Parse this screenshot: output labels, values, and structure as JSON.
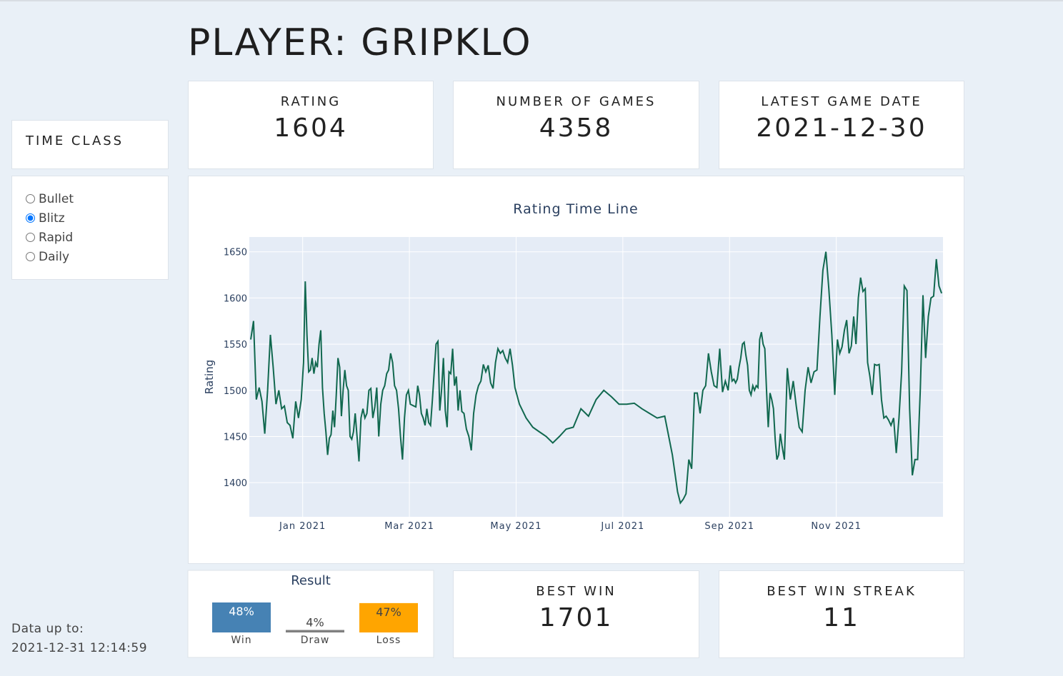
{
  "header": {
    "title": "PLAYER: GRIPKLO"
  },
  "sidebar": {
    "title": "TIME CLASS",
    "options": [
      "Bullet",
      "Blitz",
      "Rapid",
      "Daily"
    ],
    "selected": "Blitz",
    "footer_label": "Data up to:",
    "footer_value": "2021-12-31 12:14:59"
  },
  "cards": [
    {
      "label": "RATING",
      "value": "1604"
    },
    {
      "label": "NUMBER OF GAMES",
      "value": "4358"
    },
    {
      "label": "LATEST GAME DATE",
      "value": "2021-12-30"
    },
    {
      "label": "BEST WIN",
      "value": "1701"
    },
    {
      "label": "BEST WIN STREAK",
      "value": "11"
    }
  ],
  "chart_data": [
    {
      "type": "line",
      "title": "Rating Time Line",
      "y_label": "Rating",
      "color": "#11684f",
      "grid": true,
      "xlim": [
        "2020-12",
        "2022-01"
      ],
      "xticks": [
        {
          "value": "2021-01",
          "label": "Jan 2021"
        },
        {
          "value": "2021-03",
          "label": "Mar 2021"
        },
        {
          "value": "2021-05",
          "label": "May 2021"
        },
        {
          "value": "2021-07",
          "label": "Jul 2021"
        },
        {
          "value": "2021-09",
          "label": "Sep 2021"
        },
        {
          "value": "2021-11",
          "label": "Nov 2021"
        }
      ],
      "ylim": [
        1363,
        1666
      ],
      "yticks": [
        1400,
        1450,
        1500,
        1550,
        1600,
        1650
      ],
      "x": [
        "2020-12",
        "2020-12",
        "2020-12",
        "2020-12",
        "2020-12",
        "2020-12",
        "2020-12",
        "2020-12",
        "2020-12",
        "2020-12",
        "2020-12",
        "2020-12",
        "2020-12",
        "2020-12",
        "2020-12",
        "2020-12",
        "2020-12",
        "2020-12",
        "2020-12",
        "2021-01",
        "2021-01",
        "2021-01",
        "2021-01",
        "2021-01",
        "2021-01",
        "2021-01",
        "2021-01",
        "2021-01",
        "2021-01",
        "2021-01",
        "2021-01",
        "2021-01",
        "2021-01",
        "2021-01",
        "2021-01",
        "2021-01",
        "2021-01",
        "2021-01",
        "2021-01",
        "2021-01",
        "2021-01",
        "2021-01",
        "2021-01",
        "2021-01",
        "2021-01",
        "2021-01",
        "2021-01",
        "2021-01",
        "2021-01",
        "2021-01",
        "2021-02",
        "2021-02",
        "2021-02",
        "2021-02",
        "2021-02",
        "2021-02",
        "2021-02",
        "2021-02",
        "2021-02",
        "2021-02",
        "2021-02",
        "2021-02",
        "2021-02",
        "2021-02",
        "2021-02",
        "2021-02",
        "2021-02",
        "2021-02",
        "2021-02",
        "2021-02",
        "2021-02",
        "2021-02",
        "2021-02",
        "2021-02",
        "2021-02",
        "2021-02",
        "2021-02",
        "2021-03",
        "2021-03",
        "2021-03",
        "2021-03",
        "2021-03",
        "2021-03",
        "2021-03",
        "2021-03",
        "2021-03",
        "2021-03",
        "2021-03",
        "2021-03",
        "2021-03",
        "2021-03",
        "2021-03",
        "2021-03",
        "2021-03",
        "2021-03",
        "2021-03",
        "2021-03",
        "2021-03",
        "2021-03",
        "2021-03",
        "2021-03",
        "2021-03",
        "2021-03",
        "2021-03",
        "2021-03",
        "2021-03",
        "2021-04",
        "2021-04",
        "2021-04",
        "2021-04",
        "2021-04",
        "2021-04",
        "2021-04",
        "2021-04",
        "2021-04",
        "2021-04",
        "2021-04",
        "2021-04",
        "2021-04",
        "2021-04",
        "2021-04",
        "2021-04",
        "2021-04",
        "2021-04",
        "2021-04",
        "2021-04",
        "2021-04",
        "2021-04",
        "2021-05",
        "2021-05",
        "2021-05",
        "2021-05",
        "2021-05",
        "2021-05",
        "2021-05",
        "2021-05",
        "2021-06",
        "2021-06",
        "2021-06",
        "2021-06",
        "2021-06",
        "2021-06",
        "2021-06",
        "2021-07",
        "2021-07",
        "2021-07",
        "2021-07",
        "2021-07",
        "2021-07",
        "2021-07",
        "2021-08",
        "2021-08",
        "2021-08",
        "2021-08",
        "2021-08",
        "2021-08",
        "2021-08",
        "2021-08",
        "2021-08",
        "2021-08",
        "2021-08",
        "2021-08",
        "2021-08",
        "2021-08",
        "2021-08",
        "2021-08",
        "2021-08",
        "2021-08",
        "2021-08",
        "2021-09",
        "2021-09",
        "2021-09",
        "2021-09",
        "2021-09",
        "2021-09",
        "2021-09",
        "2021-09",
        "2021-09",
        "2021-09",
        "2021-09",
        "2021-09",
        "2021-09",
        "2021-09",
        "2021-09",
        "2021-09",
        "2021-09",
        "2021-09",
        "2021-09",
        "2021-09",
        "2021-09",
        "2021-09",
        "2021-09",
        "2021-09",
        "2021-09",
        "2021-09",
        "2021-09",
        "2021-09",
        "2021-09",
        "2021-09",
        "2021-09",
        "2021-10",
        "2021-10",
        "2021-10",
        "2021-10",
        "2021-10",
        "2021-10",
        "2021-10",
        "2021-10",
        "2021-10",
        "2021-10",
        "2021-10",
        "2021-10",
        "2021-10",
        "2021-10",
        "2021-10",
        "2021-10",
        "2021-10",
        "2021-10",
        "2021-11",
        "2021-11",
        "2021-11",
        "2021-11",
        "2021-11",
        "2021-11",
        "2021-11",
        "2021-11",
        "2021-11",
        "2021-11",
        "2021-11",
        "2021-11",
        "2021-11",
        "2021-11",
        "2021-11",
        "2021-11",
        "2021-11",
        "2021-11",
        "2021-11",
        "2021-11",
        "2021-11",
        "2021-11",
        "2021-11",
        "2021-12",
        "2021-12",
        "2021-12",
        "2021-12",
        "2021-12",
        "2021-12",
        "2021-12",
        "2021-12",
        "2021-12",
        "2021-12",
        "2021-12",
        "2021-12",
        "2021-12",
        "2021-12",
        "2021-12",
        "2021-12",
        "2021-12",
        "2021-12",
        "2021-12",
        "2021-12"
      ],
      "values": [
        1555,
        1575,
        1490,
        1503,
        1488,
        1453,
        1500,
        1560,
        1525,
        1485,
        1500,
        1480,
        1483,
        1465,
        1462,
        1448,
        1488,
        1470,
        1490,
        1530,
        1618,
        1560,
        1520,
        1522,
        1535,
        1518,
        1530,
        1525,
        1550,
        1565,
        1503,
        1475,
        1455,
        1430,
        1448,
        1452,
        1478,
        1460,
        1495,
        1535,
        1525,
        1472,
        1500,
        1522,
        1505,
        1500,
        1450,
        1447,
        1455,
        1475,
        1450,
        1423,
        1470,
        1480,
        1470,
        1475,
        1500,
        1502,
        1470,
        1482,
        1503,
        1450,
        1485,
        1500,
        1505,
        1518,
        1522,
        1540,
        1530,
        1505,
        1500,
        1480,
        1450,
        1425,
        1470,
        1495,
        1500,
        1485,
        1484,
        1483,
        1482,
        1505,
        1495,
        1475,
        1470,
        1462,
        1480,
        1465,
        1462,
        1490,
        1520,
        1550,
        1553,
        1478,
        1500,
        1535,
        1478,
        1460,
        1520,
        1518,
        1545,
        1505,
        1515,
        1478,
        1500,
        1477,
        1475,
        1458,
        1450,
        1435,
        1475,
        1495,
        1505,
        1510,
        1528,
        1520,
        1527,
        1508,
        1502,
        1530,
        1545,
        1540,
        1543,
        1535,
        1530,
        1545,
        1527,
        1503,
        1485,
        1470,
        1460,
        1455,
        1450,
        1443,
        1450,
        1458,
        1460,
        1480,
        1472,
        1490,
        1500,
        1493,
        1485,
        1485,
        1486,
        1480,
        1475,
        1470,
        1472,
        1430,
        1390,
        1378,
        1382,
        1388,
        1425,
        1415,
        1497,
        1497,
        1475,
        1500,
        1505,
        1540,
        1520,
        1505,
        1503,
        1545,
        1498,
        1510,
        1500,
        1527,
        1510,
        1512,
        1508,
        1512,
        1525,
        1535,
        1550,
        1552,
        1538,
        1527,
        1500,
        1495,
        1505,
        1500,
        1505,
        1503,
        1555,
        1563,
        1550,
        1545,
        1500,
        1460,
        1497,
        1490,
        1480,
        1447,
        1425,
        1430,
        1453,
        1440,
        1425,
        1524,
        1490,
        1510,
        1483,
        1460,
        1455,
        1500,
        1525,
        1508,
        1520,
        1522,
        1580,
        1630,
        1650,
        1610,
        1560,
        1495,
        1555,
        1540,
        1547,
        1565,
        1576,
        1540,
        1548,
        1580,
        1550,
        1600,
        1622,
        1607,
        1610,
        1530,
        1515,
        1495,
        1528,
        1527,
        1528,
        1490,
        1470,
        1472,
        1468,
        1462,
        1470,
        1432,
        1470,
        1520,
        1613,
        1608,
        1480,
        1408,
        1425,
        1425,
        1502,
        1603,
        1535,
        1580,
        1600,
        1602,
        1642,
        1613,
        1605
      ]
    },
    {
      "type": "bar",
      "title": "Result",
      "categories": [
        "Win",
        "Draw",
        "Loss"
      ],
      "values": [
        48,
        4,
        47
      ],
      "value_labels": [
        "48%",
        "4%",
        "47%"
      ],
      "colors": [
        "#4682b4",
        "#808080",
        "#ffa500"
      ]
    }
  ]
}
